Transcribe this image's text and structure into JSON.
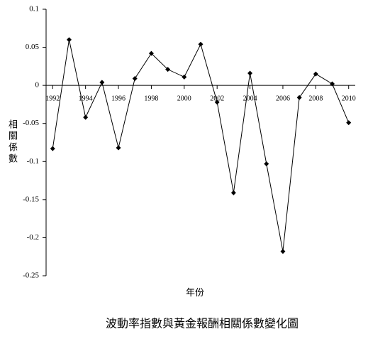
{
  "chart_data": {
    "type": "line",
    "title": "波動率指數與黃金報酬相關係數變化圖",
    "x_label": "年份",
    "y_label": "相關係數",
    "x": [
      1992,
      1993,
      1994,
      1995,
      1996,
      1997,
      1998,
      1999,
      2000,
      2001,
      2002,
      2003,
      2004,
      2005,
      2006,
      2007,
      2008,
      2009,
      2010
    ],
    "series": [
      {
        "color": "#000000",
        "values": [
          -0.083,
          0.06,
          -0.042,
          0.004,
          -0.082,
          0.009,
          0.042,
          0.021,
          0.011,
          0.054,
          -0.022,
          -0.141,
          0.016,
          -0.103,
          -0.218,
          -0.016,
          0.015,
          0.002,
          -0.049
        ]
      }
    ],
    "xlim": [
      1991.6,
      2010.4
    ],
    "xticks": [
      1992,
      1994,
      1996,
      1998,
      2000,
      2002,
      2004,
      2006,
      2008,
      2010
    ],
    "ylim": [
      -0.25,
      0.1
    ],
    "yticks": [
      0.1,
      0.05,
      0,
      -0.05,
      -0.1,
      -0.15,
      -0.2,
      -0.25
    ]
  }
}
